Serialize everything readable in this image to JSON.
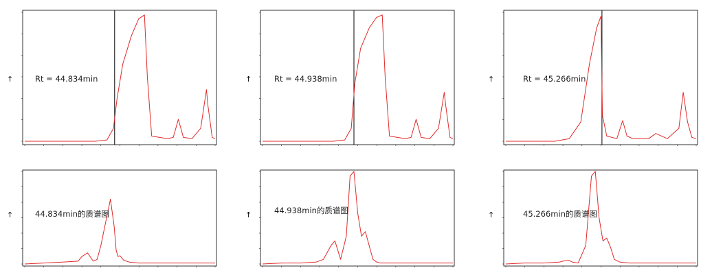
{
  "colors": {
    "trace": "#e02a2a",
    "frame": "#000000",
    "marker": "#000000",
    "peak_label": "#cc2222"
  },
  "chart_data": [
    {
      "type": "line",
      "panel": "chromatogram",
      "annotation": "Rt = 44.834min",
      "marker_x": 44.834,
      "xlim": [
        38.6,
        51.8
      ],
      "ylim": [
        0,
        1
      ],
      "series": [
        {
          "x": [
            38.6,
            43.5,
            44.3,
            44.75,
            45.0,
            45.4,
            46.0,
            46.5,
            46.9,
            47.1,
            47.4,
            48.5,
            48.9,
            49.25,
            49.6,
            50.2,
            50.8,
            51.2,
            51.3,
            51.6,
            51.8
          ],
          "y": [
            0.0,
            0.0,
            0.01,
            0.1,
            0.33,
            0.6,
            0.82,
            0.95,
            0.98,
            0.5,
            0.04,
            0.02,
            0.03,
            0.17,
            0.03,
            0.02,
            0.1,
            0.4,
            0.28,
            0.03,
            0.02
          ]
        }
      ]
    },
    {
      "type": "line",
      "panel": "chromatogram",
      "annotation": "Rt = 44.938min",
      "marker_x": 44.938,
      "xlim": [
        38.6,
        51.8
      ],
      "ylim": [
        0,
        1
      ],
      "series": [
        {
          "x": [
            38.6,
            43.5,
            44.3,
            44.75,
            45.0,
            45.4,
            46.0,
            46.5,
            46.9,
            47.1,
            47.4,
            48.5,
            48.9,
            49.25,
            49.6,
            50.2,
            50.8,
            51.2,
            51.3,
            51.6,
            51.8
          ],
          "y": [
            0.0,
            0.0,
            0.01,
            0.1,
            0.45,
            0.72,
            0.88,
            0.96,
            0.98,
            0.5,
            0.04,
            0.02,
            0.03,
            0.17,
            0.03,
            0.02,
            0.1,
            0.38,
            0.28,
            0.03,
            0.02
          ]
        }
      ]
    },
    {
      "type": "line",
      "panel": "chromatogram",
      "annotation": "Rt = 45.266min",
      "marker_x": 45.266,
      "xlim": [
        38.6,
        51.8
      ],
      "ylim": [
        0,
        1
      ],
      "series": [
        {
          "x": [
            38.6,
            42.0,
            43.0,
            43.8,
            44.4,
            44.9,
            45.2,
            45.3,
            45.6,
            46.3,
            46.7,
            47.0,
            47.4,
            48.5,
            49.0,
            49.8,
            50.6,
            50.9,
            51.2,
            51.5,
            51.8
          ],
          "y": [
            0.0,
            0.0,
            0.02,
            0.15,
            0.6,
            0.88,
            0.97,
            0.2,
            0.04,
            0.02,
            0.16,
            0.04,
            0.02,
            0.02,
            0.06,
            0.02,
            0.1,
            0.38,
            0.15,
            0.03,
            0.02
          ]
        }
      ]
    },
    {
      "type": "line",
      "panel": "mass-spectrum",
      "annotation": "44.834min的质谱图",
      "xlim": [
        0,
        100
      ],
      "ylim": [
        0,
        1
      ],
      "series": [
        {
          "x": [
            0,
            10,
            20,
            28,
            30,
            33,
            35,
            36,
            38,
            40,
            43,
            45,
            47,
            48,
            49,
            50,
            52,
            55,
            60,
            65,
            70,
            80,
            90,
            100
          ],
          "y": [
            0,
            0.01,
            0.02,
            0.03,
            0.08,
            0.12,
            0.06,
            0.03,
            0.05,
            0.2,
            0.5,
            0.7,
            0.4,
            0.15,
            0.08,
            0.09,
            0.04,
            0.02,
            0.01,
            0.01,
            0.01,
            0.01,
            0.01,
            0.01
          ]
        }
      ]
    },
    {
      "type": "line",
      "panel": "mass-spectrum",
      "annotation": "44.938min的质谱图",
      "xlim": [
        0,
        100
      ],
      "ylim": [
        0,
        1
      ],
      "series": [
        {
          "x": [
            0,
            10,
            20,
            28,
            32,
            36,
            38,
            41,
            44,
            46,
            48,
            50,
            52,
            54,
            56,
            58,
            60,
            62,
            65,
            70,
            80,
            90,
            100
          ],
          "y": [
            0,
            0.01,
            0.01,
            0.02,
            0.05,
            0.2,
            0.25,
            0.05,
            0.3,
            0.95,
            1.0,
            0.55,
            0.3,
            0.35,
            0.2,
            0.05,
            0.02,
            0.01,
            0.01,
            0.01,
            0.01,
            0.01,
            0.01
          ]
        }
      ]
    },
    {
      "type": "line",
      "panel": "mass-spectrum",
      "annotation": "45.266min的质谱图",
      "xlim": [
        0,
        100
      ],
      "ylim": [
        0,
        1
      ],
      "series": [
        {
          "x": [
            0,
            10,
            20,
            28,
            30,
            33,
            35,
            38,
            42,
            45,
            47,
            49,
            51,
            53,
            55,
            57,
            60,
            65,
            70,
            80,
            90,
            100
          ],
          "y": [
            0,
            0.01,
            0.01,
            0.02,
            0.03,
            0.04,
            0.02,
            0.01,
            0.2,
            0.95,
            1.0,
            0.5,
            0.25,
            0.28,
            0.18,
            0.05,
            0.02,
            0.01,
            0.01,
            0.01,
            0.01,
            0.01
          ]
        }
      ]
    }
  ]
}
